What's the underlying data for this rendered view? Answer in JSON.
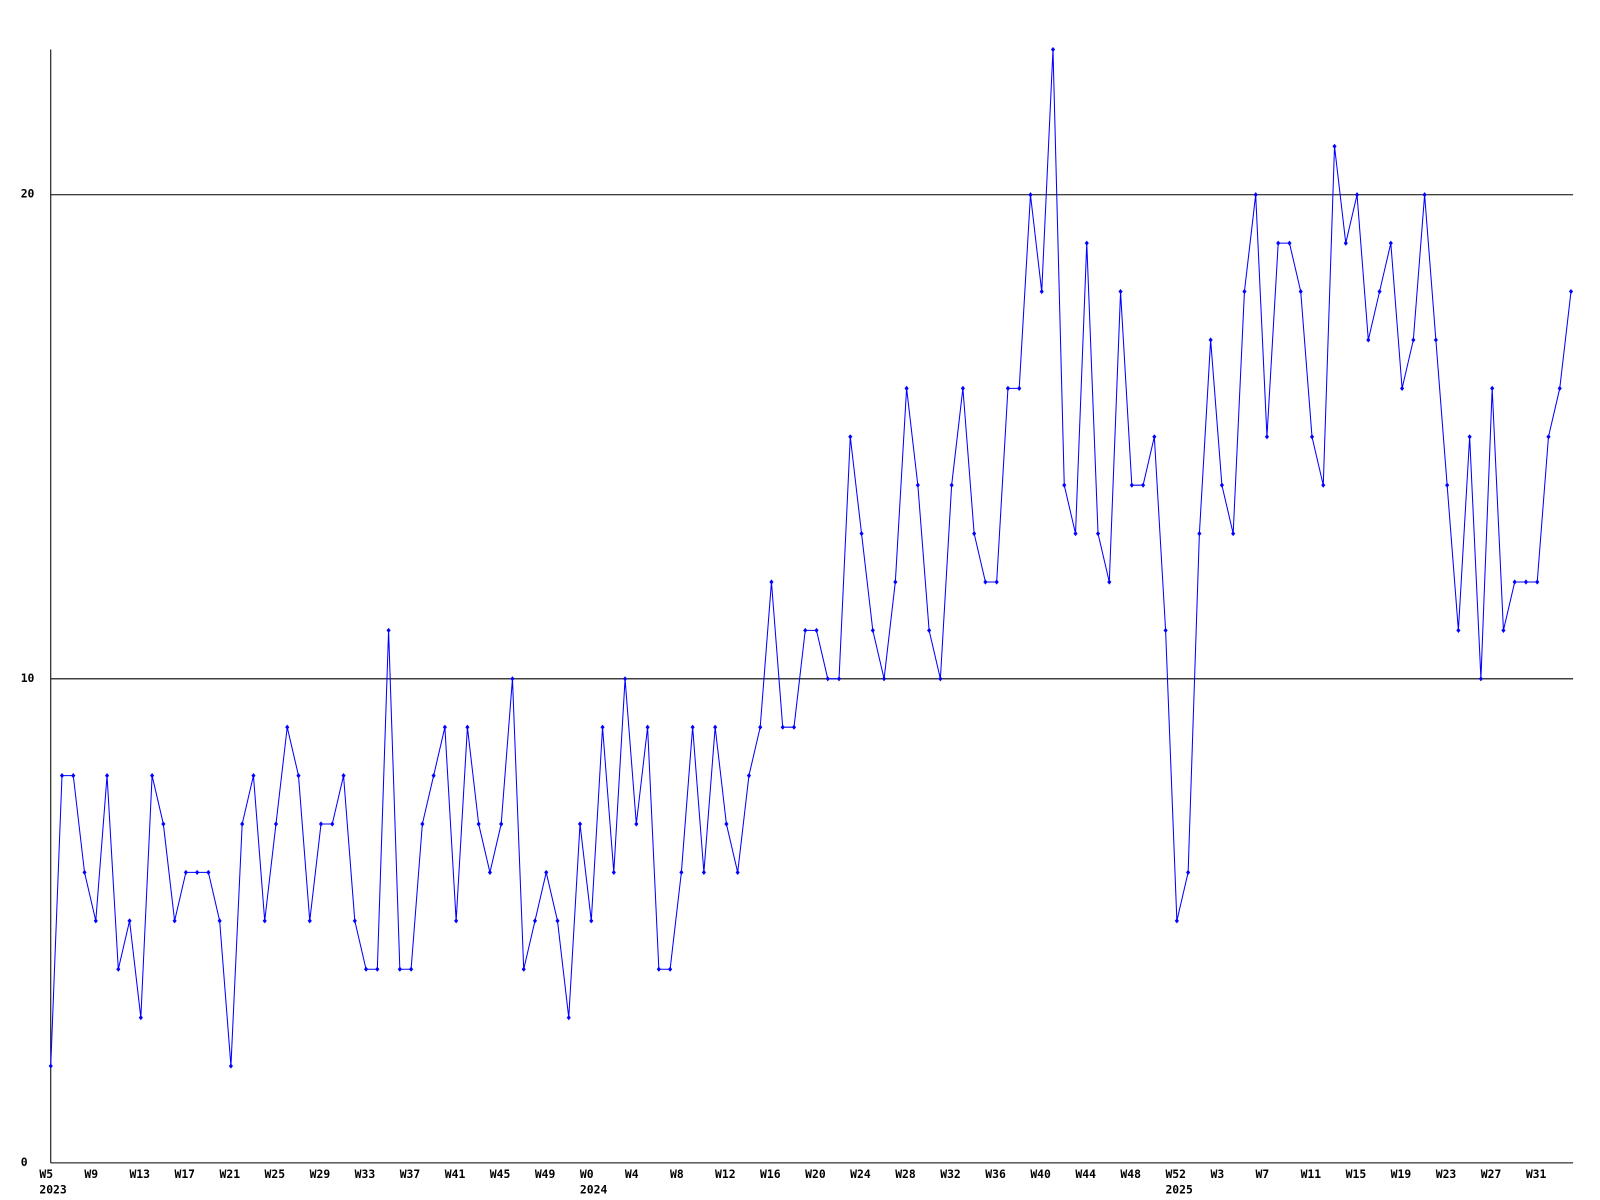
{
  "chart_data": {
    "type": "line",
    "color": "#0000ff",
    "grid": true,
    "ylim": [
      0,
      23
    ],
    "yticks": [
      0,
      10,
      20
    ],
    "categories": [
      "W5",
      null,
      null,
      null,
      "W9",
      null,
      null,
      null,
      "W13",
      null,
      null,
      null,
      "W17",
      null,
      null,
      null,
      "W21",
      null,
      null,
      null,
      "W25",
      null,
      null,
      null,
      "W29",
      null,
      null,
      null,
      "W33",
      null,
      null,
      null,
      "W37",
      null,
      null,
      null,
      "W41",
      null,
      null,
      null,
      "W45",
      null,
      null,
      null,
      "W49",
      null,
      null,
      null,
      "W0",
      null,
      null,
      null,
      "W4",
      null,
      null,
      null,
      "W8",
      null,
      null,
      null,
      "W12",
      null,
      null,
      null,
      "W16",
      null,
      null,
      null,
      "W20",
      null,
      null,
      null,
      "W24",
      null,
      null,
      null,
      "W28",
      null,
      null,
      null,
      "W32",
      null,
      null,
      null,
      "W36",
      null,
      null,
      null,
      "W40",
      null,
      null,
      null,
      "W44",
      null,
      null,
      null,
      "W48",
      null,
      null,
      null,
      "W52",
      null,
      null,
      null,
      "W3",
      null,
      null,
      null,
      "W7",
      null,
      null,
      null,
      "W11",
      null,
      null,
      null,
      "W15",
      null,
      null,
      null,
      "W19",
      null,
      null,
      null,
      "W23",
      null,
      null,
      null,
      "W27",
      null,
      null,
      null,
      "W31",
      null,
      null,
      null
    ],
    "years": [
      "2023",
      null,
      null,
      null,
      null,
      null,
      null,
      null,
      null,
      null,
      null,
      null,
      null,
      null,
      null,
      null,
      null,
      null,
      null,
      null,
      null,
      null,
      null,
      null,
      null,
      null,
      null,
      null,
      null,
      null,
      null,
      null,
      null,
      null,
      null,
      null,
      null,
      null,
      null,
      null,
      null,
      null,
      null,
      null,
      null,
      null,
      null,
      null,
      "2024",
      null,
      null,
      null,
      null,
      null,
      null,
      null,
      null,
      null,
      null,
      null,
      null,
      null,
      null,
      null,
      null,
      null,
      null,
      null,
      null,
      null,
      null,
      null,
      null,
      null,
      null,
      null,
      null,
      null,
      null,
      null,
      null,
      null,
      null,
      null,
      null,
      null,
      null,
      null,
      null,
      null,
      null,
      null,
      null,
      null,
      null,
      null,
      null,
      null,
      null,
      null,
      "2025",
      null,
      null,
      null,
      null,
      null,
      null,
      null,
      null,
      null,
      null,
      null,
      null,
      null,
      null,
      null,
      null,
      null,
      null,
      null,
      null,
      null,
      null,
      null,
      null,
      null,
      null,
      null,
      null,
      null,
      null,
      null,
      null,
      null,
      null
    ],
    "values": [
      2,
      8,
      8,
      6,
      5,
      8,
      4,
      5,
      3,
      8,
      7,
      5,
      6,
      6,
      6,
      5,
      2,
      7,
      8,
      5,
      7,
      9,
      8,
      5,
      7,
      7,
      8,
      5,
      4,
      4,
      11,
      4,
      4,
      7,
      8,
      9,
      5,
      9,
      7,
      6,
      7,
      10,
      4,
      5,
      6,
      5,
      3,
      7,
      5,
      9,
      6,
      10,
      7,
      9,
      4,
      4,
      6,
      9,
      6,
      9,
      7,
      6,
      8,
      9,
      12,
      9,
      9,
      11,
      11,
      10,
      10,
      15,
      13,
      11,
      10,
      12,
      16,
      14,
      11,
      10,
      14,
      16,
      13,
      12,
      12,
      16,
      16,
      20,
      18,
      23,
      14,
      13,
      19,
      13,
      12,
      18,
      14,
      14,
      15,
      11,
      5,
      6,
      13,
      17,
      14,
      13,
      18,
      20,
      15,
      19,
      19,
      18,
      15,
      14,
      21,
      19,
      20,
      17,
      18,
      19,
      16,
      17,
      20,
      17,
      14,
      11,
      15,
      10,
      16,
      11,
      12,
      12,
      12,
      15,
      16,
      18
    ]
  }
}
